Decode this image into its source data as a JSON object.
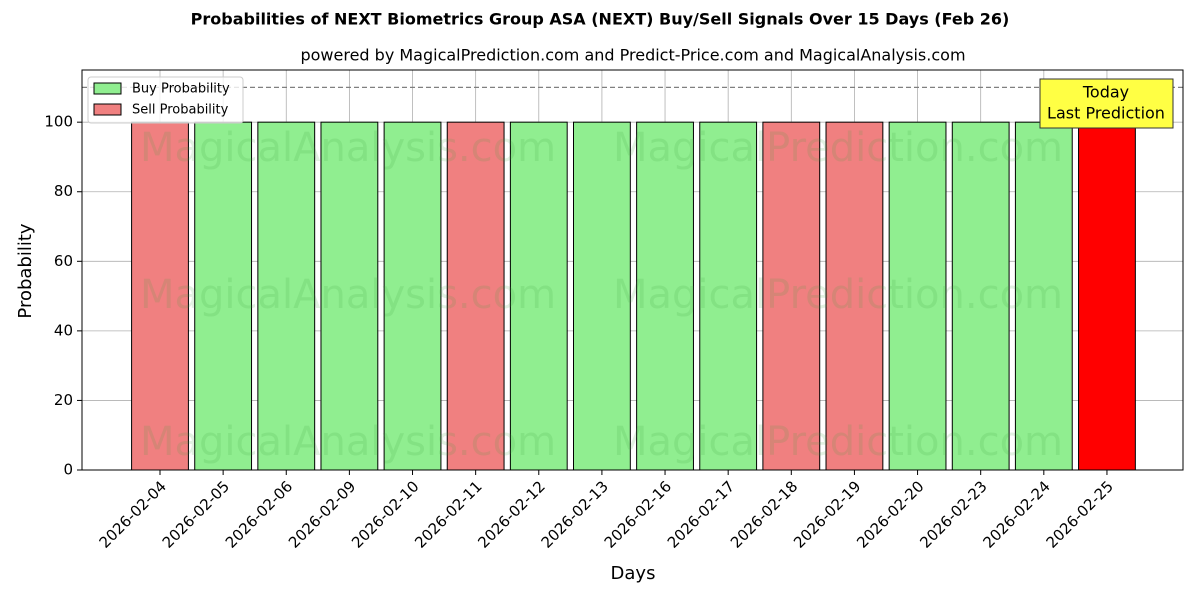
{
  "chart_data": {
    "type": "bar",
    "title": "Probabilities of NEXT Biometrics Group ASA (NEXT) Buy/Sell Signals Over 15 Days (Feb 26)",
    "subtitle": "powered by MagicalPrediction.com and Predict-Price.com and MagicalAnalysis.com",
    "x_label": "Days",
    "y_label": "Probability",
    "categories": [
      "2026-02-04",
      "2026-02-05",
      "2026-02-06",
      "2026-02-09",
      "2026-02-10",
      "2026-02-11",
      "2026-02-12",
      "2026-02-13",
      "2026-02-16",
      "2026-02-17",
      "2026-02-18",
      "2026-02-19",
      "2026-02-20",
      "2026-02-23",
      "2026-02-24",
      "2026-02-25"
    ],
    "series": [
      {
        "name": "Buy Probability",
        "color": "#90ee90",
        "values": [
          null,
          100,
          100,
          100,
          100,
          null,
          100,
          100,
          100,
          100,
          null,
          null,
          100,
          100,
          100,
          null
        ]
      },
      {
        "name": "Sell Probability",
        "color": "#f08080",
        "values": [
          100,
          null,
          null,
          null,
          null,
          100,
          null,
          null,
          null,
          null,
          100,
          100,
          null,
          null,
          null,
          100
        ]
      }
    ],
    "highlight_color": "#ff0000",
    "annotation": [
      "Today",
      "Last Prediction"
    ],
    "reference_line": 110,
    "watermarks": [
      "MagicalAnalysis.com",
      "MagicalPrediction.com"
    ],
    "ylim": [
      0,
      115
    ],
    "yticks": [
      0,
      20,
      40,
      60,
      80,
      100
    ],
    "grid": true,
    "legend": "upper-left"
  }
}
